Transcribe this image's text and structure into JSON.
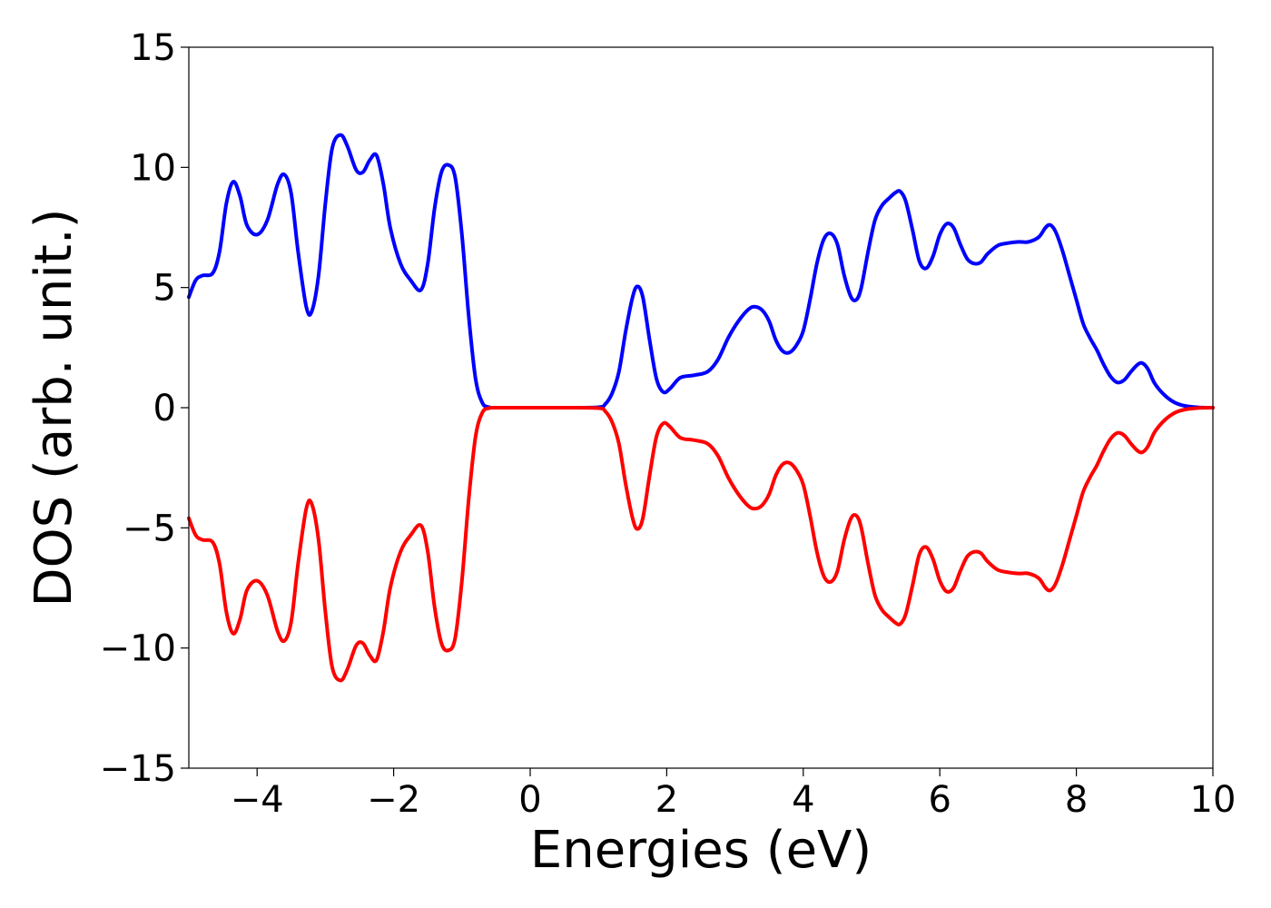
{
  "chart_data": {
    "type": "line",
    "xlabel": "Energies (eV)",
    "ylabel": "DOS (arb. unit.)",
    "xlim": [
      -5,
      10
    ],
    "ylim": [
      -15,
      15
    ],
    "grid": false,
    "xticks": [
      -4,
      -2,
      0,
      2,
      4,
      6,
      8,
      10
    ],
    "yticks": [
      -15,
      -10,
      -5,
      0,
      5,
      10,
      15
    ],
    "xtick_labels": [
      "−4",
      "−2",
      "0",
      "2",
      "4",
      "6",
      "8",
      "10"
    ],
    "ytick_labels": [
      "−15",
      "−10",
      "−5",
      "0",
      "5",
      "10",
      "15"
    ],
    "series": [
      {
        "color": "#0000ff",
        "points": [
          [
            -5.0,
            4.6
          ],
          [
            -4.9,
            5.3
          ],
          [
            -4.8,
            5.5
          ],
          [
            -4.65,
            5.6
          ],
          [
            -4.55,
            6.5
          ],
          [
            -4.45,
            8.5
          ],
          [
            -4.35,
            9.4
          ],
          [
            -4.25,
            8.8
          ],
          [
            -4.15,
            7.6
          ],
          [
            -4.0,
            7.2
          ],
          [
            -3.85,
            7.8
          ],
          [
            -3.7,
            9.3
          ],
          [
            -3.6,
            9.7
          ],
          [
            -3.5,
            8.9
          ],
          [
            -3.4,
            6.5
          ],
          [
            -3.28,
            4.2
          ],
          [
            -3.2,
            4.0
          ],
          [
            -3.1,
            5.5
          ],
          [
            -3.0,
            8.5
          ],
          [
            -2.9,
            10.8
          ],
          [
            -2.78,
            11.35
          ],
          [
            -2.68,
            10.9
          ],
          [
            -2.55,
            9.9
          ],
          [
            -2.45,
            9.8
          ],
          [
            -2.35,
            10.3
          ],
          [
            -2.25,
            10.5
          ],
          [
            -2.15,
            9.3
          ],
          [
            -2.05,
            7.5
          ],
          [
            -1.9,
            6.0
          ],
          [
            -1.75,
            5.3
          ],
          [
            -1.6,
            4.9
          ],
          [
            -1.5,
            6.0
          ],
          [
            -1.4,
            8.3
          ],
          [
            -1.3,
            9.8
          ],
          [
            -1.2,
            10.1
          ],
          [
            -1.1,
            9.6
          ],
          [
            -1.0,
            7.2
          ],
          [
            -0.9,
            3.8
          ],
          [
            -0.8,
            1.2
          ],
          [
            -0.7,
            0.2
          ],
          [
            -0.6,
            0.02
          ],
          [
            -0.5,
            0.0
          ],
          [
            0.0,
            0.0
          ],
          [
            0.5,
            0.0
          ],
          [
            1.0,
            0.02
          ],
          [
            1.1,
            0.15
          ],
          [
            1.2,
            0.6
          ],
          [
            1.3,
            1.5
          ],
          [
            1.4,
            3.2
          ],
          [
            1.5,
            4.6
          ],
          [
            1.57,
            5.05
          ],
          [
            1.65,
            4.6
          ],
          [
            1.75,
            2.8
          ],
          [
            1.85,
            1.2
          ],
          [
            1.95,
            0.65
          ],
          [
            2.05,
            0.8
          ],
          [
            2.2,
            1.25
          ],
          [
            2.4,
            1.35
          ],
          [
            2.6,
            1.5
          ],
          [
            2.75,
            2.0
          ],
          [
            2.9,
            2.9
          ],
          [
            3.05,
            3.6
          ],
          [
            3.2,
            4.1
          ],
          [
            3.3,
            4.2
          ],
          [
            3.4,
            4.05
          ],
          [
            3.5,
            3.6
          ],
          [
            3.6,
            2.8
          ],
          [
            3.7,
            2.35
          ],
          [
            3.8,
            2.3
          ],
          [
            3.9,
            2.6
          ],
          [
            4.0,
            3.2
          ],
          [
            4.1,
            4.5
          ],
          [
            4.2,
            6.0
          ],
          [
            4.3,
            7.0
          ],
          [
            4.4,
            7.25
          ],
          [
            4.5,
            6.8
          ],
          [
            4.6,
            5.5
          ],
          [
            4.7,
            4.6
          ],
          [
            4.78,
            4.5
          ],
          [
            4.85,
            5.0
          ],
          [
            4.95,
            6.5
          ],
          [
            5.05,
            7.8
          ],
          [
            5.15,
            8.4
          ],
          [
            5.25,
            8.7
          ],
          [
            5.35,
            8.95
          ],
          [
            5.42,
            9.0
          ],
          [
            5.5,
            8.6
          ],
          [
            5.6,
            7.4
          ],
          [
            5.7,
            6.1
          ],
          [
            5.8,
            5.8
          ],
          [
            5.9,
            6.3
          ],
          [
            6.0,
            7.2
          ],
          [
            6.1,
            7.65
          ],
          [
            6.2,
            7.5
          ],
          [
            6.3,
            6.8
          ],
          [
            6.4,
            6.2
          ],
          [
            6.5,
            6.0
          ],
          [
            6.6,
            6.05
          ],
          [
            6.7,
            6.4
          ],
          [
            6.85,
            6.75
          ],
          [
            7.0,
            6.85
          ],
          [
            7.15,
            6.9
          ],
          [
            7.3,
            6.9
          ],
          [
            7.45,
            7.1
          ],
          [
            7.55,
            7.5
          ],
          [
            7.62,
            7.6
          ],
          [
            7.7,
            7.3
          ],
          [
            7.8,
            6.5
          ],
          [
            7.9,
            5.5
          ],
          [
            8.0,
            4.5
          ],
          [
            8.1,
            3.5
          ],
          [
            8.2,
            2.9
          ],
          [
            8.3,
            2.4
          ],
          [
            8.4,
            1.8
          ],
          [
            8.5,
            1.3
          ],
          [
            8.6,
            1.05
          ],
          [
            8.7,
            1.15
          ],
          [
            8.8,
            1.5
          ],
          [
            8.9,
            1.8
          ],
          [
            8.97,
            1.85
          ],
          [
            9.05,
            1.6
          ],
          [
            9.15,
            1.0
          ],
          [
            9.3,
            0.5
          ],
          [
            9.45,
            0.2
          ],
          [
            9.6,
            0.07
          ],
          [
            9.8,
            0.01
          ],
          [
            10.0,
            0.0
          ]
        ]
      },
      {
        "color": "#ff0000",
        "points": [
          [
            -5.0,
            -4.6
          ],
          [
            -4.9,
            -5.3
          ],
          [
            -4.8,
            -5.5
          ],
          [
            -4.65,
            -5.6
          ],
          [
            -4.55,
            -6.5
          ],
          [
            -4.45,
            -8.5
          ],
          [
            -4.35,
            -9.4
          ],
          [
            -4.25,
            -8.8
          ],
          [
            -4.15,
            -7.6
          ],
          [
            -4.0,
            -7.2
          ],
          [
            -3.85,
            -7.8
          ],
          [
            -3.7,
            -9.3
          ],
          [
            -3.6,
            -9.7
          ],
          [
            -3.5,
            -8.9
          ],
          [
            -3.4,
            -6.5
          ],
          [
            -3.28,
            -4.2
          ],
          [
            -3.2,
            -4.0
          ],
          [
            -3.1,
            -5.5
          ],
          [
            -3.0,
            -8.5
          ],
          [
            -2.9,
            -10.8
          ],
          [
            -2.78,
            -11.35
          ],
          [
            -2.68,
            -10.9
          ],
          [
            -2.55,
            -9.9
          ],
          [
            -2.45,
            -9.8
          ],
          [
            -2.35,
            -10.3
          ],
          [
            -2.25,
            -10.5
          ],
          [
            -2.15,
            -9.3
          ],
          [
            -2.05,
            -7.5
          ],
          [
            -1.9,
            -6.0
          ],
          [
            -1.75,
            -5.3
          ],
          [
            -1.6,
            -4.9
          ],
          [
            -1.5,
            -6.0
          ],
          [
            -1.4,
            -8.3
          ],
          [
            -1.3,
            -9.8
          ],
          [
            -1.2,
            -10.1
          ],
          [
            -1.1,
            -9.6
          ],
          [
            -1.0,
            -7.2
          ],
          [
            -0.9,
            -3.8
          ],
          [
            -0.8,
            -1.2
          ],
          [
            -0.7,
            -0.2
          ],
          [
            -0.6,
            -0.02
          ],
          [
            -0.5,
            0.0
          ],
          [
            0.0,
            0.0
          ],
          [
            0.5,
            0.0
          ],
          [
            1.0,
            -0.02
          ],
          [
            1.1,
            -0.15
          ],
          [
            1.2,
            -0.6
          ],
          [
            1.3,
            -1.5
          ],
          [
            1.4,
            -3.2
          ],
          [
            1.5,
            -4.6
          ],
          [
            1.57,
            -5.05
          ],
          [
            1.65,
            -4.6
          ],
          [
            1.75,
            -2.8
          ],
          [
            1.85,
            -1.2
          ],
          [
            1.95,
            -0.65
          ],
          [
            2.05,
            -0.8
          ],
          [
            2.2,
            -1.25
          ],
          [
            2.4,
            -1.35
          ],
          [
            2.6,
            -1.5
          ],
          [
            2.75,
            -2.0
          ],
          [
            2.9,
            -2.9
          ],
          [
            3.05,
            -3.6
          ],
          [
            3.2,
            -4.1
          ],
          [
            3.3,
            -4.2
          ],
          [
            3.4,
            -4.05
          ],
          [
            3.5,
            -3.6
          ],
          [
            3.6,
            -2.8
          ],
          [
            3.7,
            -2.35
          ],
          [
            3.8,
            -2.3
          ],
          [
            3.9,
            -2.6
          ],
          [
            4.0,
            -3.2
          ],
          [
            4.1,
            -4.5
          ],
          [
            4.2,
            -6.0
          ],
          [
            4.3,
            -7.0
          ],
          [
            4.4,
            -7.25
          ],
          [
            4.5,
            -6.8
          ],
          [
            4.6,
            -5.5
          ],
          [
            4.7,
            -4.6
          ],
          [
            4.78,
            -4.5
          ],
          [
            4.85,
            -5.0
          ],
          [
            4.95,
            -6.5
          ],
          [
            5.05,
            -7.8
          ],
          [
            5.15,
            -8.4
          ],
          [
            5.25,
            -8.7
          ],
          [
            5.35,
            -8.95
          ],
          [
            5.42,
            -9.0
          ],
          [
            5.5,
            -8.6
          ],
          [
            5.6,
            -7.4
          ],
          [
            5.7,
            -6.1
          ],
          [
            5.8,
            -5.8
          ],
          [
            5.9,
            -6.3
          ],
          [
            6.0,
            -7.2
          ],
          [
            6.1,
            -7.65
          ],
          [
            6.2,
            -7.5
          ],
          [
            6.3,
            -6.8
          ],
          [
            6.4,
            -6.2
          ],
          [
            6.5,
            -6.0
          ],
          [
            6.6,
            -6.05
          ],
          [
            6.7,
            -6.4
          ],
          [
            6.85,
            -6.75
          ],
          [
            7.0,
            -6.85
          ],
          [
            7.15,
            -6.9
          ],
          [
            7.3,
            -6.9
          ],
          [
            7.45,
            -7.1
          ],
          [
            7.55,
            -7.5
          ],
          [
            7.62,
            -7.6
          ],
          [
            7.7,
            -7.3
          ],
          [
            7.8,
            -6.5
          ],
          [
            7.9,
            -5.5
          ],
          [
            8.0,
            -4.5
          ],
          [
            8.1,
            -3.5
          ],
          [
            8.2,
            -2.9
          ],
          [
            8.3,
            -2.4
          ],
          [
            8.4,
            -1.8
          ],
          [
            8.5,
            -1.3
          ],
          [
            8.6,
            -1.05
          ],
          [
            8.7,
            -1.15
          ],
          [
            8.8,
            -1.5
          ],
          [
            8.9,
            -1.8
          ],
          [
            8.97,
            -1.85
          ],
          [
            9.05,
            -1.6
          ],
          [
            9.15,
            -1.0
          ],
          [
            9.3,
            -0.5
          ],
          [
            9.45,
            -0.2
          ],
          [
            9.6,
            -0.07
          ],
          [
            9.8,
            -0.01
          ],
          [
            10.0,
            0.0
          ]
        ]
      }
    ]
  }
}
